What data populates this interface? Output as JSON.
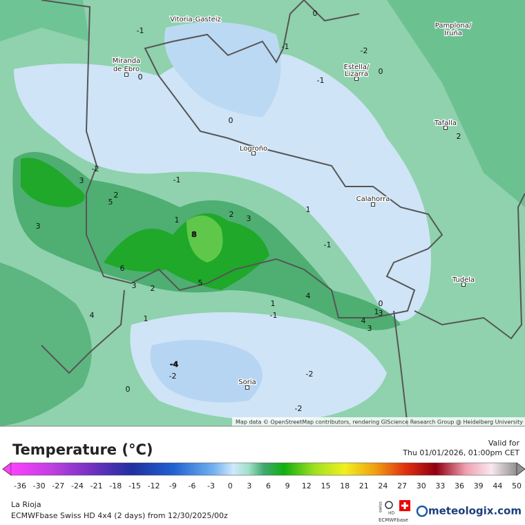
{
  "map": {
    "cities": [
      "Vitoria-Gasteiz",
      "Pamplona/",
      "Iruña",
      "Miranda",
      "de Ebro",
      "Estella/",
      "Lizarra",
      "Tafalla",
      "Logroño",
      "Calahorra",
      "Tudela",
      "Soria"
    ],
    "contour_labels": [
      -1,
      -1,
      -2,
      0,
      0,
      0,
      -1,
      0,
      2,
      -2,
      3,
      -1,
      2,
      5,
      3,
      1,
      2,
      3,
      1,
      -1,
      8,
      6,
      3,
      2,
      5,
      4,
      1,
      -1,
      0,
      1,
      3,
      4,
      3,
      4,
      1,
      -4,
      -2,
      -2,
      0,
      -2
    ],
    "attribution": "Map data © OpenStreetMap contributors, rendering GIScience Research Group @ Heidelberg University"
  },
  "legend": {
    "title": "Temperature (°C)",
    "valid_label": "Valid for",
    "valid_time": "Thu 01/01/2026, 01:00pm CET",
    "ticks": [
      -36,
      -30,
      -27,
      -24,
      -21,
      -18,
      -15,
      -12,
      -9,
      -6,
      -3,
      0,
      3,
      6,
      9,
      12,
      15,
      18,
      21,
      24,
      27,
      30,
      33,
      36,
      39,
      44,
      50
    ]
  },
  "footer": {
    "region": "La Rioja",
    "model": "ECMWFbase Swiss HD 4x4 (2 days) from 12/30/2025/00z",
    "badge_top": "swiss",
    "badge_mid": "HD",
    "badge_bottom": "ECMWFbase",
    "brand": "meteologix.com"
  }
}
